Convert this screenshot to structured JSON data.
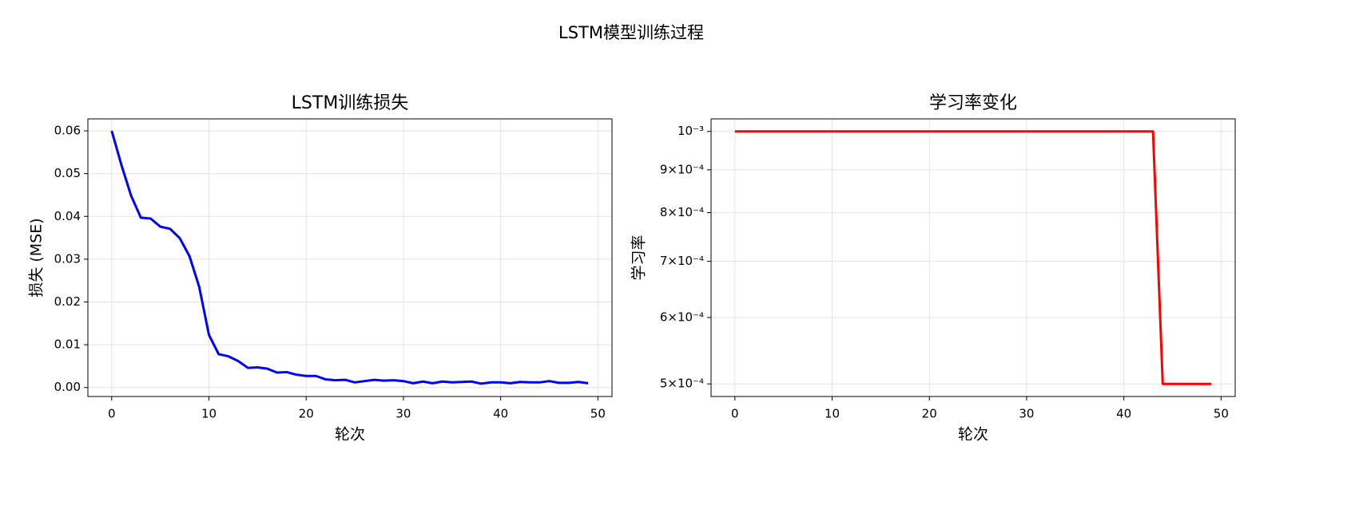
{
  "title": "LSTM模型训练过程",
  "chart_data": [
    {
      "type": "line",
      "title": "LSTM训练损失",
      "xlabel": "轮次",
      "ylabel": "损失 (MSE)",
      "color": "#0000ff",
      "grid": true,
      "x": [
        0,
        1,
        2,
        3,
        4,
        5,
        6,
        7,
        8,
        9,
        10,
        11,
        12,
        13,
        14,
        15,
        16,
        17,
        18,
        19,
        20,
        21,
        22,
        23,
        24,
        25,
        26,
        27,
        28,
        29,
        30,
        31,
        32,
        33,
        34,
        35,
        36,
        37,
        38,
        39,
        40,
        41,
        42,
        43,
        44,
        45,
        46,
        47,
        48,
        49
      ],
      "values": [
        0.06,
        0.052,
        0.0448,
        0.0397,
        0.0395,
        0.0376,
        0.0371,
        0.0349,
        0.0307,
        0.0235,
        0.0123,
        0.0078,
        0.0073,
        0.0062,
        0.0046,
        0.0047,
        0.0044,
        0.0035,
        0.0036,
        0.003,
        0.0027,
        0.0027,
        0.0019,
        0.0017,
        0.0018,
        0.0012,
        0.0015,
        0.0018,
        0.0016,
        0.0017,
        0.0015,
        0.001,
        0.0014,
        0.001,
        0.0014,
        0.0012,
        0.0013,
        0.0014,
        0.0009,
        0.0012,
        0.0012,
        0.001,
        0.0013,
        0.0012,
        0.0012,
        0.0015,
        0.0011,
        0.0011,
        0.0013,
        0.001
      ],
      "xlim": [
        -2.45,
        51.45
      ],
      "xticks": [
        0,
        10,
        20,
        30,
        40,
        50
      ],
      "ylim": [
        -0.0021,
        0.0628
      ],
      "yticks": [
        {
          "value": 0,
          "label": "0.00"
        },
        {
          "value": 0.01,
          "label": "0.01"
        },
        {
          "value": 0.02,
          "label": "0.02"
        },
        {
          "value": 0.03,
          "label": "0.03"
        },
        {
          "value": 0.04,
          "label": "0.04"
        },
        {
          "value": 0.05,
          "label": "0.05"
        },
        {
          "value": 0.06,
          "label": "0.06"
        }
      ]
    },
    {
      "type": "line",
      "title": "学习率变化",
      "xlabel": "轮次",
      "ylabel": "学习率",
      "color": "#ff0000",
      "grid": true,
      "yscale": "log",
      "x": [
        0,
        1,
        2,
        3,
        4,
        5,
        6,
        7,
        8,
        9,
        10,
        11,
        12,
        13,
        14,
        15,
        16,
        17,
        18,
        19,
        20,
        21,
        22,
        23,
        24,
        25,
        26,
        27,
        28,
        29,
        30,
        31,
        32,
        33,
        34,
        35,
        36,
        37,
        38,
        39,
        40,
        41,
        42,
        43,
        44,
        45,
        46,
        47,
        48,
        49
      ],
      "values": [
        0.001,
        0.001,
        0.001,
        0.001,
        0.001,
        0.001,
        0.001,
        0.001,
        0.001,
        0.001,
        0.001,
        0.001,
        0.001,
        0.001,
        0.001,
        0.001,
        0.001,
        0.001,
        0.001,
        0.001,
        0.001,
        0.001,
        0.001,
        0.001,
        0.001,
        0.001,
        0.001,
        0.001,
        0.001,
        0.001,
        0.001,
        0.001,
        0.001,
        0.001,
        0.001,
        0.001,
        0.001,
        0.001,
        0.001,
        0.001,
        0.001,
        0.001,
        0.001,
        0.001,
        0.0005,
        0.0005,
        0.0005,
        0.0005,
        0.0005,
        0.0005
      ],
      "xlim": [
        -2.45,
        51.45
      ],
      "xticks": [
        0,
        10,
        20,
        30,
        40,
        50
      ],
      "ylim": [
        0.000483,
        0.001035
      ],
      "yticks": [
        {
          "value": 0.0005,
          "label": "5×10⁻⁴"
        },
        {
          "value": 0.0006,
          "label": "6×10⁻⁴"
        },
        {
          "value": 0.0007,
          "label": "7×10⁻⁴"
        },
        {
          "value": 0.0008,
          "label": "8×10⁻⁴"
        },
        {
          "value": 0.0009,
          "label": "9×10⁻⁴"
        },
        {
          "value": 0.001,
          "label": "10⁻³"
        }
      ]
    }
  ]
}
